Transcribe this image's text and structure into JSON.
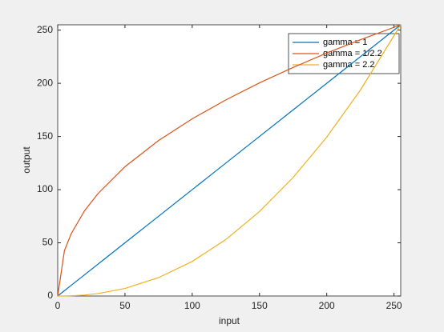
{
  "chart_data": {
    "type": "line",
    "xlabel": "input",
    "ylabel": "output",
    "x": [
      0,
      5,
      10,
      20,
      30,
      50,
      75,
      100,
      125,
      150,
      175,
      200,
      225,
      255
    ],
    "series": [
      {
        "name": "gamma = 1",
        "color": "#0072BD",
        "values": [
          0,
          5,
          10,
          20,
          30,
          50,
          75,
          100,
          125,
          150,
          175,
          200,
          225,
          255
        ]
      },
      {
        "name": "gamma = 1/2.2",
        "color": "#D95319",
        "values": [
          0,
          42.7,
          58.5,
          80.2,
          96.4,
          121.6,
          146.2,
          166.6,
          184.4,
          200.4,
          214.9,
          228.4,
          240.9,
          255
        ]
      },
      {
        "name": "gamma = 2.2",
        "color": "#EDB120",
        "values": [
          0,
          0.04,
          0.2,
          0.9,
          2.3,
          7.1,
          17.3,
          32.5,
          53.1,
          79.4,
          111.4,
          149.4,
          193.6,
          255
        ]
      }
    ],
    "xlim": [
      0,
      255
    ],
    "ylim": [
      0,
      255
    ],
    "xticks": [
      0,
      50,
      100,
      150,
      200,
      250
    ],
    "yticks": [
      0,
      50,
      100,
      150,
      200,
      250
    ],
    "legend": "northeast"
  }
}
